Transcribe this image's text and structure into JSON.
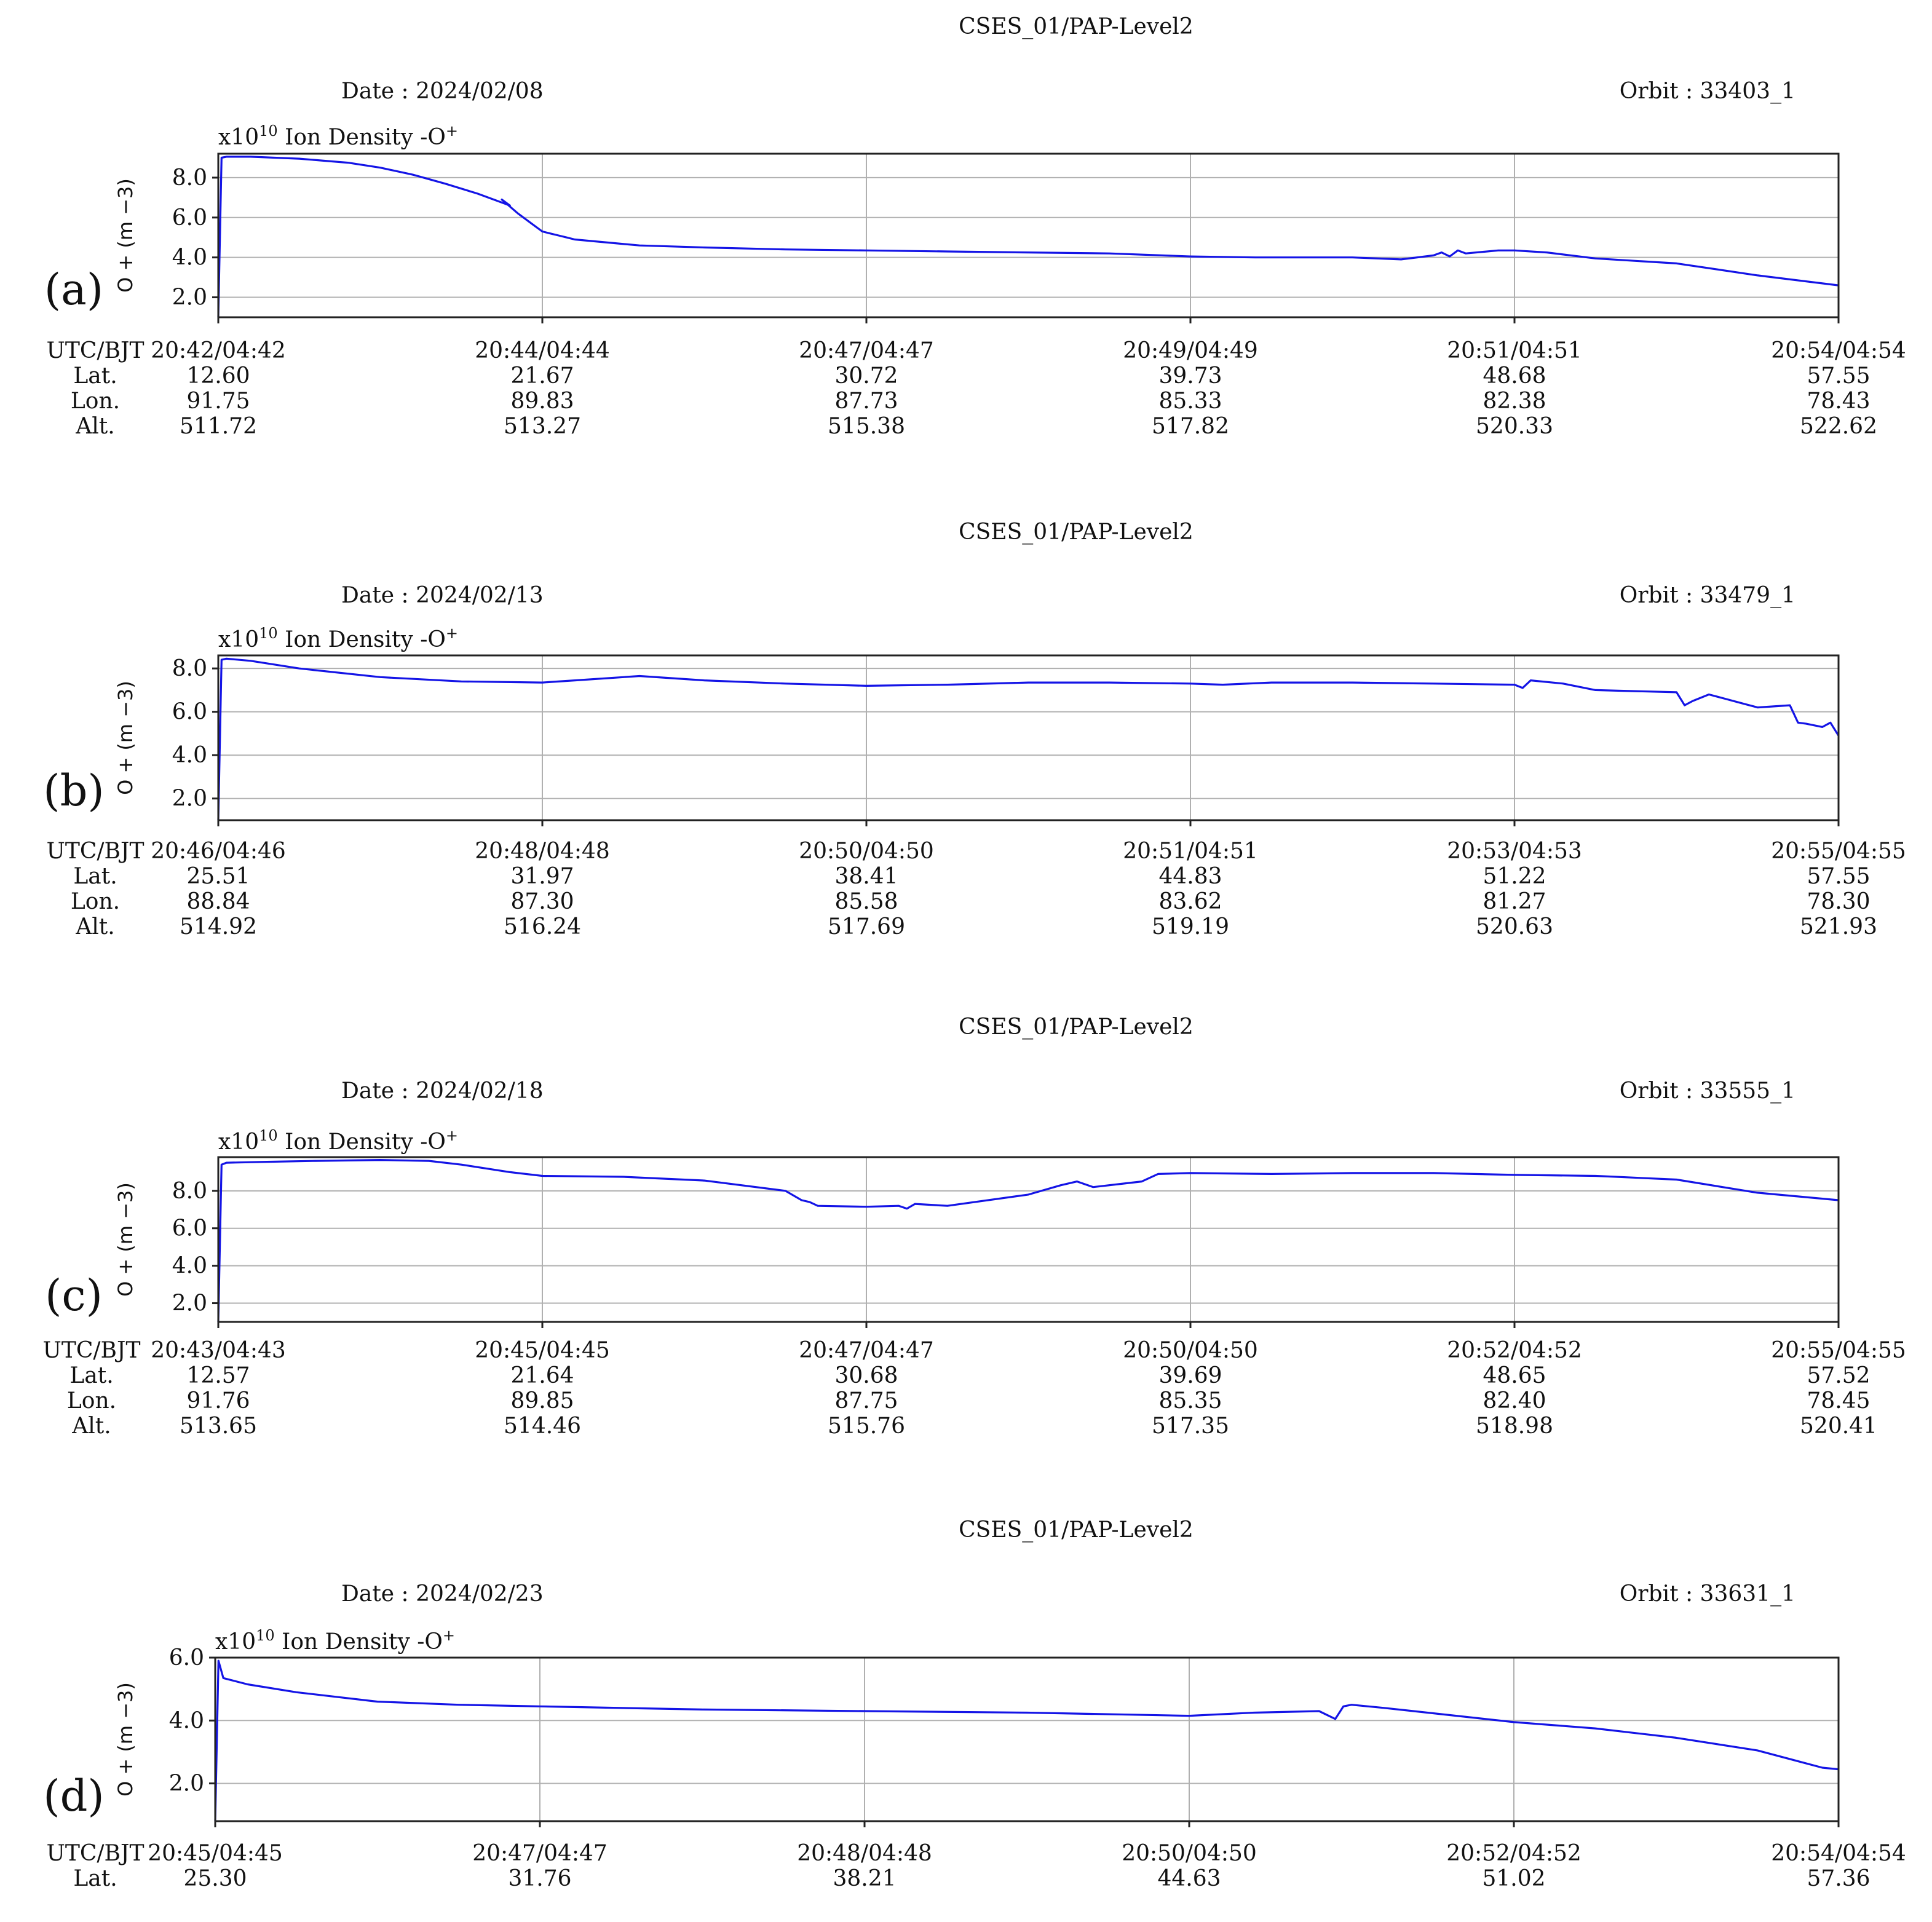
{
  "chart_data": [
    {
      "panel": "(a)",
      "type": "line",
      "title": "CSES_01/PAP-Level2",
      "date_label": "Date : 2024/02/08",
      "orbit_label": "Orbit : 33403_1",
      "unit_label": "x10",
      "unit_exp": "10",
      "series_label": " Ion Density -O",
      "series_sup": "+",
      "ylabel": "O + (m −3)",
      "ylim": [
        1.0,
        9.2
      ],
      "yticks": [
        "2.0",
        "4.0",
        "6.0",
        "8.0"
      ],
      "ytick_values": [
        2,
        4,
        6,
        8
      ],
      "row_labels": [
        "UTC/BJT",
        "Lat.",
        "Lon.",
        "Alt."
      ],
      "x_ticks": [
        {
          "time": "20:42/04:42",
          "lat": "12.60",
          "lon": "91.75",
          "alt": "511.72"
        },
        {
          "time": "20:44/04:44",
          "lat": "21.67",
          "lon": "89.83",
          "alt": "513.27"
        },
        {
          "time": "20:47/04:47",
          "lat": "30.72",
          "lon": "87.73",
          "alt": "515.38"
        },
        {
          "time": "20:49/04:49",
          "lat": "39.73",
          "lon": "85.33",
          "alt": "517.82"
        },
        {
          "time": "20:51/04:51",
          "lat": "48.68",
          "lon": "82.38",
          "alt": "520.33"
        },
        {
          "time": "20:54/04:54",
          "lat": "57.55",
          "lon": "78.43",
          "alt": "522.62"
        }
      ],
      "x": [
        0,
        0.002,
        0.005,
        0.02,
        0.05,
        0.08,
        0.1,
        0.12,
        0.14,
        0.16,
        0.18,
        0.175,
        0.185,
        0.195,
        0.2,
        0.205,
        0.21,
        0.215,
        0.22,
        0.24,
        0.26,
        0.3,
        0.35,
        0.4,
        0.45,
        0.5,
        0.55,
        0.6,
        0.64,
        0.7,
        0.73,
        0.75,
        0.755,
        0.76,
        0.765,
        0.77,
        0.79,
        0.8,
        0.82,
        0.85,
        0.9,
        0.95,
        1.0
      ],
      "y": [
        1.0,
        9.0,
        9.05,
        9.05,
        8.95,
        8.75,
        8.5,
        8.15,
        7.7,
        7.2,
        6.6,
        6.9,
        6.2,
        5.6,
        5.3,
        5.2,
        5.1,
        5.0,
        4.9,
        4.75,
        4.6,
        4.5,
        4.4,
        4.35,
        4.3,
        4.25,
        4.2,
        4.05,
        4.0,
        4.0,
        3.9,
        4.1,
        4.25,
        4.05,
        4.35,
        4.2,
        4.35,
        4.35,
        4.25,
        3.95,
        3.7,
        3.1,
        2.6
      ]
    },
    {
      "panel": "(b)",
      "type": "line",
      "title": "CSES_01/PAP-Level2",
      "date_label": "Date : 2024/02/13",
      "orbit_label": "Orbit : 33479_1",
      "unit_label": "x10",
      "unit_exp": "10",
      "series_label": " Ion Density -O",
      "series_sup": "+",
      "ylabel": "O + (m −3)",
      "ylim": [
        1.0,
        8.6
      ],
      "yticks": [
        "2.0",
        "4.0",
        "6.0",
        "8.0"
      ],
      "ytick_values": [
        2,
        4,
        6,
        8
      ],
      "row_labels": [
        "UTC/BJT",
        "Lat.",
        "Lon.",
        "Alt."
      ],
      "x_ticks": [
        {
          "time": "20:46/04:46",
          "lat": "25.51",
          "lon": "88.84",
          "alt": "514.92"
        },
        {
          "time": "20:48/04:48",
          "lat": "31.97",
          "lon": "87.30",
          "alt": "516.24"
        },
        {
          "time": "20:50/04:50",
          "lat": "38.41",
          "lon": "85.58",
          "alt": "517.69"
        },
        {
          "time": "20:51/04:51",
          "lat": "44.83",
          "lon": "83.62",
          "alt": "519.19"
        },
        {
          "time": "20:53/04:53",
          "lat": "51.22",
          "lon": "81.27",
          "alt": "520.63"
        },
        {
          "time": "20:55/04:55",
          "lat": "57.55",
          "lon": "78.30",
          "alt": "521.93"
        }
      ],
      "x": [
        0,
        0.002,
        0.005,
        0.02,
        0.05,
        0.1,
        0.15,
        0.2,
        0.22,
        0.25,
        0.26,
        0.3,
        0.35,
        0.4,
        0.45,
        0.5,
        0.55,
        0.6,
        0.62,
        0.65,
        0.7,
        0.75,
        0.8,
        0.805,
        0.81,
        0.83,
        0.85,
        0.9,
        0.905,
        0.91,
        0.92,
        0.93,
        0.94,
        0.95,
        0.96,
        0.97,
        0.975,
        0.98,
        0.99,
        0.995,
        1.0
      ],
      "y": [
        1.0,
        8.4,
        8.45,
        8.35,
        8.0,
        7.6,
        7.4,
        7.35,
        7.45,
        7.6,
        7.65,
        7.45,
        7.3,
        7.2,
        7.25,
        7.35,
        7.35,
        7.3,
        7.25,
        7.35,
        7.35,
        7.3,
        7.25,
        7.1,
        7.45,
        7.3,
        7.0,
        6.9,
        6.3,
        6.5,
        6.8,
        6.6,
        6.4,
        6.2,
        6.25,
        6.3,
        5.5,
        5.45,
        5.3,
        5.5,
        4.9
      ]
    },
    {
      "panel": "(c)",
      "type": "line",
      "title": "CSES_01/PAP-Level2",
      "date_label": "Date : 2024/02/18",
      "orbit_label": "Orbit : 33555_1",
      "unit_label": "x10",
      "unit_exp": "10",
      "series_label": " Ion Density -O",
      "series_sup": "+",
      "ylabel": "O + (m −3)",
      "ylim": [
        1.0,
        9.8
      ],
      "yticks": [
        "2.0",
        "4.0",
        "6.0",
        "8.0"
      ],
      "ytick_values": [
        2,
        4,
        6,
        8
      ],
      "row_labels": [
        "UTC/BJT",
        "Lat.",
        "Lon.",
        "Alt."
      ],
      "x_ticks": [
        {
          "time": "20:43/04:43",
          "lat": "12.57",
          "lon": "91.76",
          "alt": "513.65"
        },
        {
          "time": "20:45/04:45",
          "lat": "21.64",
          "lon": "89.85",
          "alt": "514.46"
        },
        {
          "time": "20:47/04:47",
          "lat": "30.68",
          "lon": "87.75",
          "alt": "515.76"
        },
        {
          "time": "20:50/04:50",
          "lat": "39.69",
          "lon": "85.35",
          "alt": "517.35"
        },
        {
          "time": "20:52/04:52",
          "lat": "48.65",
          "lon": "82.40",
          "alt": "518.98"
        },
        {
          "time": "20:55/04:55",
          "lat": "57.52",
          "lon": "78.45",
          "alt": "520.41"
        }
      ],
      "x": [
        0,
        0.002,
        0.005,
        0.03,
        0.06,
        0.1,
        0.13,
        0.15,
        0.18,
        0.2,
        0.25,
        0.3,
        0.35,
        0.36,
        0.365,
        0.37,
        0.4,
        0.42,
        0.425,
        0.43,
        0.45,
        0.5,
        0.52,
        0.53,
        0.54,
        0.56,
        0.57,
        0.58,
        0.6,
        0.65,
        0.7,
        0.75,
        0.8,
        0.85,
        0.9,
        0.95,
        1.0
      ],
      "y": [
        1.0,
        9.4,
        9.5,
        9.55,
        9.6,
        9.65,
        9.6,
        9.4,
        9.0,
        8.8,
        8.75,
        8.55,
        8.0,
        7.5,
        7.4,
        7.2,
        7.15,
        7.2,
        7.05,
        7.3,
        7.2,
        7.8,
        8.3,
        8.5,
        8.2,
        8.4,
        8.5,
        8.9,
        8.95,
        8.9,
        8.95,
        8.95,
        8.85,
        8.8,
        8.6,
        7.9,
        7.5
      ]
    },
    {
      "panel": "(d)",
      "type": "line",
      "title": "CSES_01/PAP-Level2",
      "date_label": "Date : 2024/02/23",
      "orbit_label": "Orbit : 33631_1",
      "unit_label": "x10",
      "unit_exp": "10",
      "series_label": " Ion Density -O",
      "series_sup": "+",
      "ylabel": "O + (m −3)",
      "ylim": [
        0.8,
        6.0
      ],
      "yticks": [
        "2.0",
        "4.0",
        "6.0"
      ],
      "ytick_values": [
        2,
        4,
        6
      ],
      "row_labels": [
        "UTC/BJT",
        "Lat."
      ],
      "x_ticks": [
        {
          "time": "20:45/04:45",
          "lat": "25.30"
        },
        {
          "time": "20:47/04:47",
          "lat": "31.76"
        },
        {
          "time": "20:48/04:48",
          "lat": "38.21"
        },
        {
          "time": "20:50/04:50",
          "lat": "44.63"
        },
        {
          "time": "20:52/04:52",
          "lat": "51.02"
        },
        {
          "time": "20:54/04:54",
          "lat": "57.36"
        }
      ],
      "x": [
        0,
        0.002,
        0.005,
        0.02,
        0.05,
        0.1,
        0.15,
        0.2,
        0.3,
        0.4,
        0.5,
        0.6,
        0.64,
        0.68,
        0.69,
        0.695,
        0.7,
        0.72,
        0.8,
        0.85,
        0.9,
        0.95,
        0.99,
        1.0
      ],
      "y": [
        0.8,
        5.9,
        5.35,
        5.15,
        4.9,
        4.6,
        4.5,
        4.45,
        4.35,
        4.3,
        4.25,
        4.15,
        4.25,
        4.3,
        4.05,
        4.45,
        4.5,
        4.4,
        3.95,
        3.75,
        3.45,
        3.05,
        2.5,
        2.45
      ]
    }
  ]
}
